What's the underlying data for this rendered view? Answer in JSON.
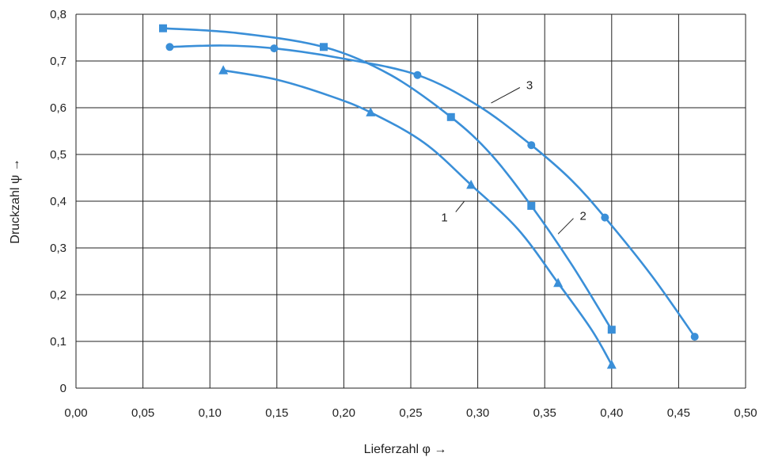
{
  "chart_data": {
    "type": "line",
    "xlabel": "Lieferzahl φ →",
    "ylabel": "Druckzahl ψ →",
    "xlim": [
      0,
      0.5
    ],
    "ylim": [
      0,
      0.8
    ],
    "grid": true,
    "x_ticks": [
      "0,00",
      "0,05",
      "0,10",
      "0,15",
      "0,20",
      "0,25",
      "0,30",
      "0,35",
      "0,40",
      "0,45",
      "0,50"
    ],
    "y_ticks": [
      "0",
      "0,1",
      "0,2",
      "0,3",
      "0,4",
      "0,5",
      "0,6",
      "0,7",
      "0,8"
    ],
    "color": "#3a8fd8",
    "series": [
      {
        "name": "1",
        "marker": "triangle",
        "points": [
          [
            0.11,
            0.68
          ],
          [
            0.22,
            0.59
          ],
          [
            0.295,
            0.435
          ],
          [
            0.36,
            0.225
          ],
          [
            0.4,
            0.05
          ]
        ],
        "curve": [
          [
            0.11,
            0.68
          ],
          [
            0.15,
            0.66
          ],
          [
            0.19,
            0.625
          ],
          [
            0.22,
            0.59
          ],
          [
            0.26,
            0.525
          ],
          [
            0.295,
            0.435
          ],
          [
            0.33,
            0.34
          ],
          [
            0.36,
            0.225
          ],
          [
            0.385,
            0.125
          ],
          [
            0.4,
            0.05
          ]
        ],
        "label_anchor": [
          0.29,
          0.4
        ]
      },
      {
        "name": "2",
        "marker": "square",
        "points": [
          [
            0.065,
            0.77
          ],
          [
            0.185,
            0.73
          ],
          [
            0.28,
            0.58
          ],
          [
            0.34,
            0.39
          ],
          [
            0.4,
            0.125
          ]
        ],
        "curve": [
          [
            0.065,
            0.77
          ],
          [
            0.12,
            0.76
          ],
          [
            0.185,
            0.73
          ],
          [
            0.235,
            0.67
          ],
          [
            0.28,
            0.58
          ],
          [
            0.31,
            0.5
          ],
          [
            0.34,
            0.39
          ],
          [
            0.37,
            0.265
          ],
          [
            0.4,
            0.125
          ]
        ],
        "label_anchor": [
          0.36,
          0.33
        ]
      },
      {
        "name": "3",
        "marker": "circle",
        "points": [
          [
            0.07,
            0.73
          ],
          [
            0.148,
            0.727
          ],
          [
            0.255,
            0.67
          ],
          [
            0.34,
            0.52
          ],
          [
            0.395,
            0.365
          ],
          [
            0.462,
            0.11
          ]
        ],
        "curve": [
          [
            0.07,
            0.73
          ],
          [
            0.11,
            0.733
          ],
          [
            0.148,
            0.727
          ],
          [
            0.2,
            0.705
          ],
          [
            0.255,
            0.67
          ],
          [
            0.3,
            0.605
          ],
          [
            0.34,
            0.52
          ],
          [
            0.37,
            0.445
          ],
          [
            0.395,
            0.365
          ],
          [
            0.43,
            0.24
          ],
          [
            0.462,
            0.11
          ]
        ],
        "label_anchor": [
          0.31,
          0.61
        ]
      }
    ],
    "labels": [
      {
        "text": "1",
        "at": [
          0.28,
          0.36
        ]
      },
      {
        "text": "2",
        "at": [
          0.375,
          0.37
        ]
      },
      {
        "text": "3",
        "at": [
          0.335,
          0.65
        ]
      }
    ]
  }
}
